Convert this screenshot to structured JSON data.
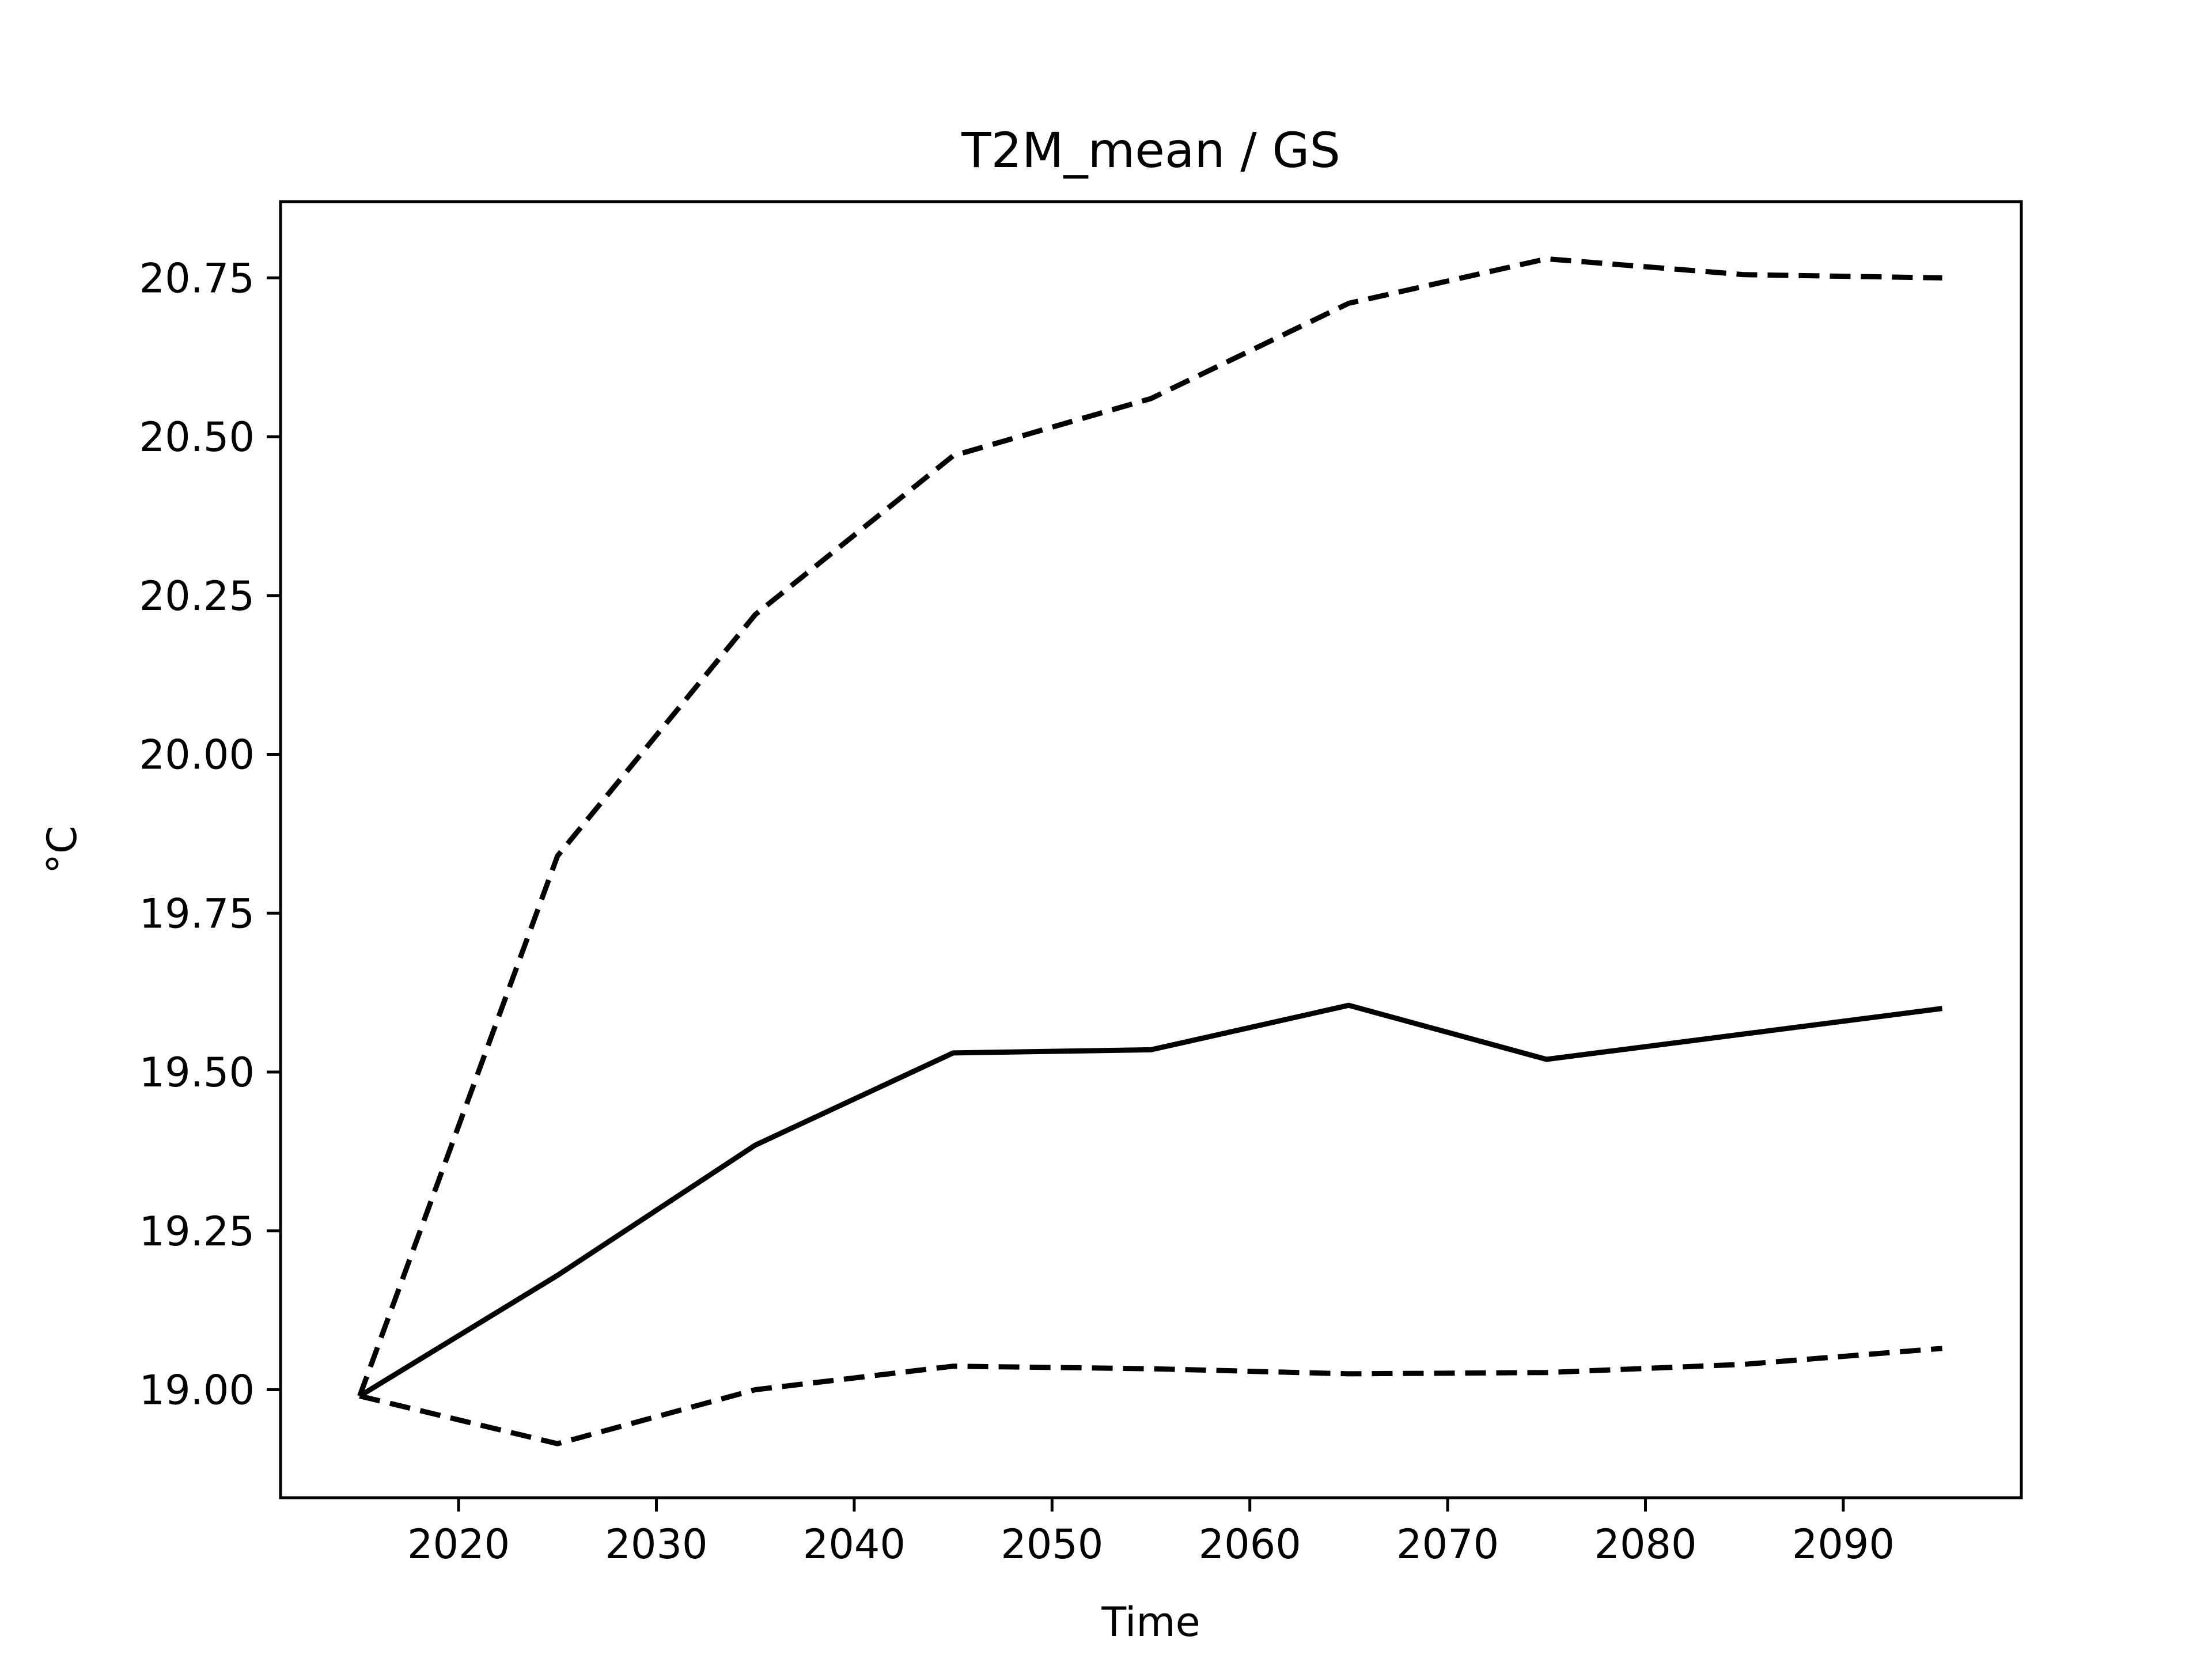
{
  "chart_data": {
    "type": "line",
    "title": "T2M_mean / GS",
    "xlabel": "Time",
    "ylabel": "°C",
    "xlim": [
      2011,
      2099
    ],
    "ylim": [
      18.83,
      20.87
    ],
    "x_ticks": [
      2020,
      2030,
      2040,
      2050,
      2060,
      2070,
      2080,
      2090
    ],
    "y_ticks": [
      19.0,
      19.25,
      19.5,
      19.75,
      20.0,
      20.25,
      20.5,
      20.75
    ],
    "x_tick_labels": [
      "2020",
      "2030",
      "2040",
      "2050",
      "2060",
      "2070",
      "2080",
      "2090"
    ],
    "y_tick_labels": [
      "19.00",
      "19.25",
      "19.50",
      "19.75",
      "20.00",
      "20.25",
      "20.50",
      "20.75"
    ],
    "grid": false,
    "legend": "none",
    "x": [
      2015,
      2025,
      2035,
      2045,
      2055,
      2065,
      2075,
      2085,
      2095
    ],
    "series": [
      {
        "style": "dashed",
        "color": "#000000",
        "values": [
          18.99,
          19.84,
          20.22,
          20.47,
          20.56,
          20.71,
          20.78,
          20.755,
          20.75
        ]
      },
      {
        "style": "solid",
        "color": "#000000",
        "values": [
          18.99,
          19.18,
          19.385,
          19.53,
          19.535,
          19.605,
          19.52,
          19.56,
          19.6
        ]
      },
      {
        "style": "dashed",
        "color": "#000000",
        "values": [
          18.99,
          18.915,
          19.0,
          19.037,
          19.033,
          19.025,
          19.027,
          19.04,
          19.065
        ]
      }
    ]
  }
}
